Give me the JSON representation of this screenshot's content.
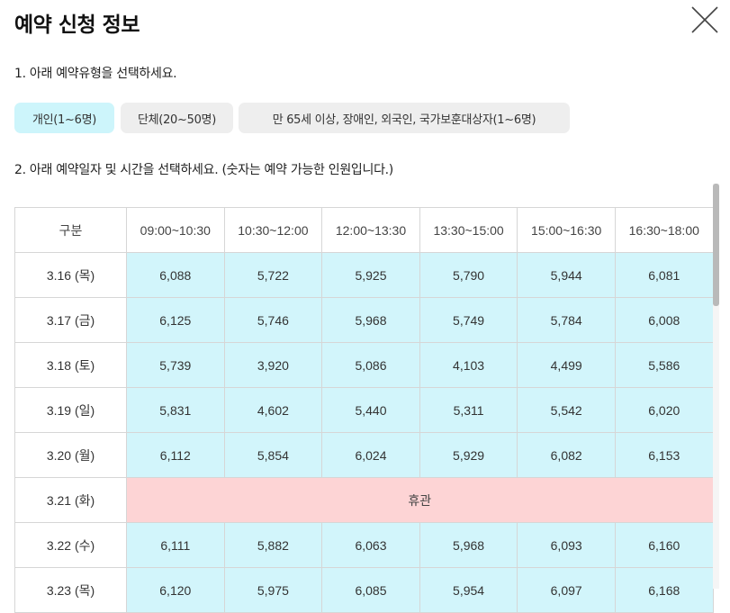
{
  "dialog": {
    "title": "예약 신청 정보"
  },
  "step1": {
    "label": "1. 아래 예약유형을 선택하세요.",
    "types": [
      {
        "label": "개인(1~6명)",
        "selected": true
      },
      {
        "label": "단체(20~50명)",
        "selected": false
      },
      {
        "label": "만 65세 이상, 장애인, 외국인, 국가보훈대상자(1~6명)",
        "selected": false
      }
    ]
  },
  "step2": {
    "label": "2. 아래 예약일자 및 시간을 선택하세요. (숫자는 예약 가능한 인원입니다.)"
  },
  "table": {
    "headers": [
      "구분",
      "09:00~10:30",
      "10:30~12:00",
      "12:00~13:30",
      "13:30~15:00",
      "15:00~16:30",
      "16:30~18:00"
    ],
    "rows": [
      {
        "date": "3.16 (목)",
        "values": [
          "6,088",
          "5,722",
          "5,925",
          "5,790",
          "5,944",
          "6,081"
        ]
      },
      {
        "date": "3.17 (금)",
        "values": [
          "6,125",
          "5,746",
          "5,968",
          "5,749",
          "5,784",
          "6,008"
        ]
      },
      {
        "date": "3.18 (토)",
        "values": [
          "5,739",
          "3,920",
          "5,086",
          "4,103",
          "4,499",
          "5,586"
        ]
      },
      {
        "date": "3.19 (일)",
        "values": [
          "5,831",
          "4,602",
          "5,440",
          "5,311",
          "5,542",
          "6,020"
        ]
      },
      {
        "date": "3.20 (월)",
        "values": [
          "6,112",
          "5,854",
          "6,024",
          "5,929",
          "6,082",
          "6,153"
        ]
      },
      {
        "date": "3.21 (화)",
        "closed": "휴관"
      },
      {
        "date": "3.22 (수)",
        "values": [
          "6,111",
          "5,882",
          "6,063",
          "5,968",
          "6,093",
          "6,160"
        ]
      },
      {
        "date": "3.23 (목)",
        "values": [
          "6,120",
          "5,975",
          "6,085",
          "5,954",
          "6,097",
          "6,168"
        ]
      }
    ]
  },
  "colors": {
    "available": "#d2f5fb",
    "closed": "#fdd4d5",
    "selected_type": "#cdf5fb",
    "button": "#eeeeee"
  }
}
